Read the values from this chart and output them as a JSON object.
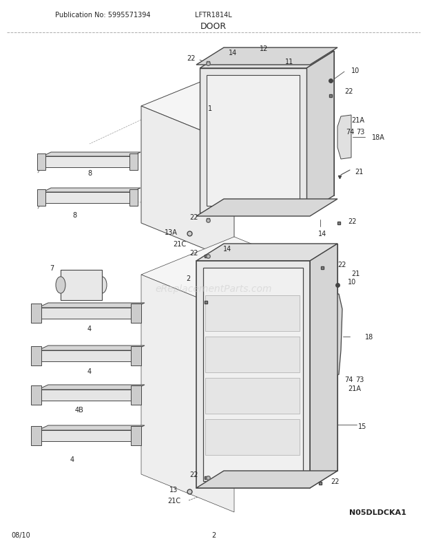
{
  "title": "DOOR",
  "pub_no": "Publication No: 5995571394",
  "model": "LFTR1814L",
  "date": "08/10",
  "page": "2",
  "diagram_code": "N05DLDCKA1",
  "bg_color": "#ffffff",
  "text_color": "#333333",
  "line_color": "#444444",
  "watermark": "eReplacementParts.com",
  "figsize": [
    6.2,
    8.03
  ],
  "dpi": 100
}
